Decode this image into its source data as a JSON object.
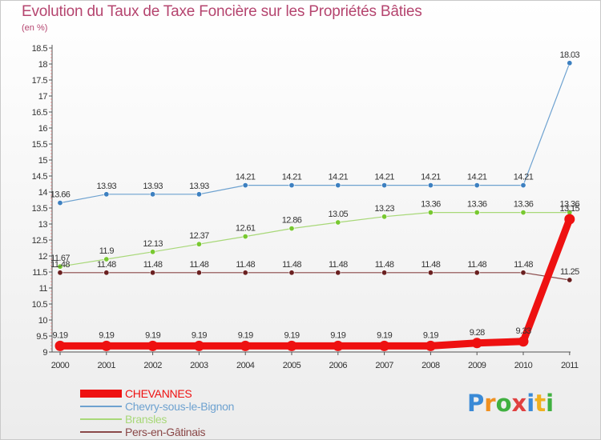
{
  "chart_data": {
    "type": "line",
    "title": "Evolution du Taux de Taxe Foncière sur les Propriétés Bâties",
    "subtitle": "(en %)",
    "xlabel": "",
    "ylabel": "",
    "ylim": [
      9,
      18.5
    ],
    "yticks": [
      "9",
      "9.5",
      "10",
      "10.5",
      "11",
      "11.5",
      "12",
      "12.5",
      "13",
      "13.5",
      "14",
      "14.5",
      "15",
      "15.5",
      "16",
      "16.5",
      "17",
      "17.5",
      "18",
      "18.5"
    ],
    "categories": [
      "2000",
      "2001",
      "2002",
      "2003",
      "2004",
      "2005",
      "2006",
      "2007",
      "2008",
      "2009",
      "2010",
      "2011"
    ],
    "grid": false,
    "series": [
      {
        "name": "Chevry-sous-le-Bignon",
        "color": "#6ea2d0",
        "marker": "#3d80c0",
        "values": [
          13.66,
          13.93,
          13.93,
          13.93,
          14.21,
          14.21,
          14.21,
          14.21,
          14.21,
          14.21,
          14.21,
          18.03
        ],
        "labels": [
          "13.66",
          "13.93",
          "13.93",
          "13.93",
          "14.21",
          "14.21",
          "14.21",
          "14.21",
          "14.21",
          "14.21",
          "14.21",
          "18.03"
        ]
      },
      {
        "name": "Bransles",
        "color": "#a8d878",
        "marker": "#78c830",
        "values": [
          11.67,
          11.9,
          12.13,
          12.37,
          12.61,
          12.86,
          13.05,
          13.23,
          13.36,
          13.36,
          13.36,
          13.36
        ],
        "labels": [
          "11.67",
          "11.9",
          "12.13",
          "12.37",
          "12.61",
          "12.86",
          "13.05",
          "13.23",
          "13.36",
          "13.36",
          "13.36",
          "13.36"
        ]
      },
      {
        "name": "Pers-en-Gâtinais",
        "color": "#8a4848",
        "marker": "#6a2020",
        "values": [
          11.48,
          11.48,
          11.48,
          11.48,
          11.48,
          11.48,
          11.48,
          11.48,
          11.48,
          11.48,
          11.48,
          11.25
        ],
        "labels": [
          "11.48",
          "11.48",
          "11.48",
          "11.48",
          "11.48",
          "11.48",
          "11.48",
          "11.48",
          "11.48",
          "11.48",
          "11.48",
          "11.25"
        ]
      },
      {
        "name": "CHEVANNES",
        "color": "#ee1111",
        "marker": "#ee1111",
        "values": [
          9.19,
          9.19,
          9.19,
          9.19,
          9.19,
          9.19,
          9.19,
          9.19,
          9.19,
          9.28,
          9.33,
          13.15
        ],
        "labels": [
          "9.19",
          "9.19",
          "9.19",
          "9.19",
          "9.19",
          "9.19",
          "9.19",
          "9.19",
          "9.19",
          "9.28",
          "9.33",
          "13.15"
        ]
      }
    ],
    "legend": [
      "CHEVANNES",
      "Chevry-sous-le-Bignon",
      "Bransles",
      "Pers-en-Gâtinais"
    ]
  },
  "legend_items": [
    {
      "label": "CHEVANNES",
      "color": "#ee1111"
    },
    {
      "label": "Chevry-sous-le-Bignon",
      "color": "#6ea2d0"
    },
    {
      "label": "Bransles",
      "color": "#a8d878"
    },
    {
      "label": "Pers-en-Gâtinais",
      "color": "#8a4848"
    }
  ],
  "logo": {
    "letters": [
      "P",
      "r",
      "o",
      "x",
      "i",
      "t",
      "i"
    ],
    "colors": [
      "#3a8ad6",
      "#f09020",
      "#40b040",
      "#e04040",
      "#3a8ad6",
      "#f0b020",
      "#40b040"
    ]
  }
}
